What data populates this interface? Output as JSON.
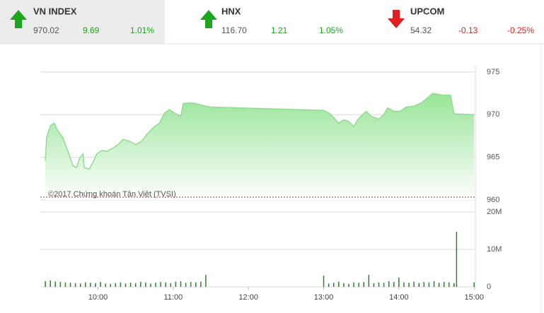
{
  "header": {
    "items": [
      {
        "name": "VN INDEX",
        "price": "970.02",
        "change": "9.69",
        "percent": "1.01%",
        "trend": "up"
      },
      {
        "name": "HNX",
        "price": "116.70",
        "change": "1.21",
        "percent": "1.05%",
        "trend": "up"
      },
      {
        "name": "UPCOM",
        "price": "54.32",
        "change": "-0.13",
        "percent": "-0.25%",
        "trend": "down"
      }
    ]
  },
  "chart_data": [
    {
      "type": "area",
      "annotation": "©2017 Chứng khoán Tân Việt (TVSI)",
      "x": [
        "09:18",
        "09:19",
        "09:22",
        "09:25",
        "09:28",
        "09:32",
        "09:36",
        "09:40",
        "09:43",
        "09:45",
        "09:48",
        "09:49",
        "09:53",
        "09:56",
        "09:59",
        "10:03",
        "10:07",
        "10:12",
        "10:16",
        "10:20",
        "10:25",
        "10:30",
        "10:35",
        "10:39",
        "10:45",
        "10:49",
        "10:53",
        "10:57",
        "11:01",
        "11:06",
        "11:08",
        "11:14",
        "11:21",
        "11:26",
        "11:30",
        "13:00",
        "13:04",
        "13:07",
        "13:12",
        "13:16",
        "13:20",
        "13:24",
        "13:27",
        "13:31",
        "13:34",
        "13:38",
        "13:44",
        "13:48",
        "13:51",
        "13:56",
        "14:01",
        "14:06",
        "14:12",
        "14:18",
        "14:23",
        "14:27",
        "14:35",
        "14:41",
        "14:44",
        "15:00"
      ],
      "values": [
        964.6,
        967.3,
        968.7,
        969.0,
        968.1,
        967.3,
        965.7,
        964.0,
        963.8,
        964.8,
        965.4,
        963.8,
        963.6,
        964.4,
        965.4,
        965.8,
        965.7,
        966.1,
        966.5,
        967.1,
        966.9,
        966.5,
        966.9,
        967.7,
        968.6,
        969.0,
        970.2,
        970.6,
        970.2,
        969.8,
        971.3,
        971.4,
        971.2,
        971.0,
        970.9,
        970.5,
        970.2,
        969.8,
        969.0,
        969.4,
        969.2,
        968.6,
        969.4,
        970.0,
        970.4,
        969.8,
        969.5,
        970.0,
        970.8,
        970.4,
        970.4,
        970.9,
        971.0,
        971.4,
        972.0,
        972.5,
        972.3,
        972.3,
        970.1,
        970.0
      ],
      "color": "#8fdc8f",
      "reference": 960.33,
      "reference_color": "#b03030",
      "xlim": [
        "09:14",
        "15:01"
      ],
      "ylim": [
        960,
        975
      ],
      "yticks": [
        960,
        965,
        970,
        975
      ],
      "grid": true
    },
    {
      "type": "bar",
      "color": "#2e7d32",
      "x": [
        "09:18",
        "09:22",
        "09:26",
        "09:30",
        "09:34",
        "09:38",
        "09:42",
        "09:46",
        "09:50",
        "09:54",
        "09:58",
        "10:02",
        "10:06",
        "10:10",
        "10:14",
        "10:18",
        "10:22",
        "10:26",
        "10:30",
        "10:34",
        "10:38",
        "10:42",
        "10:46",
        "10:50",
        "10:54",
        "10:58",
        "11:02",
        "11:06",
        "11:10",
        "11:14",
        "11:18",
        "11:22",
        "11:26",
        "13:00",
        "13:04",
        "13:08",
        "13:12",
        "13:16",
        "13:20",
        "13:24",
        "13:28",
        "13:32",
        "13:36",
        "13:40",
        "13:44",
        "13:48",
        "13:52",
        "13:56",
        "14:00",
        "14:04",
        "14:08",
        "14:12",
        "14:16",
        "14:20",
        "14:24",
        "14:28",
        "14:32",
        "14:36",
        "14:40",
        "14:44",
        "14:46",
        "15:00"
      ],
      "values": [
        1500000,
        1700000,
        1400000,
        1300000,
        1200000,
        1100000,
        1000000,
        900000,
        1200000,
        1100000,
        1000000,
        1300000,
        900000,
        800000,
        1000000,
        1200000,
        900000,
        1100000,
        1000000,
        1400000,
        1200000,
        900000,
        1100000,
        1300000,
        1200000,
        1000000,
        1400000,
        1500000,
        1100000,
        1300000,
        1200000,
        1400000,
        3200000,
        3000000,
        900000,
        1100000,
        1400000,
        1000000,
        800000,
        1200000,
        1100000,
        1300000,
        3200000,
        1000000,
        1200000,
        1100000,
        1500000,
        1300000,
        2500000,
        1200000,
        1100000,
        1400000,
        1000000,
        1300000,
        1200000,
        1500000,
        1100000,
        1300000,
        1200000,
        1000000,
        14700000,
        1200000
      ],
      "xlim": [
        "09:14",
        "15:01"
      ],
      "xticks": [
        "10:00",
        "11:00",
        "12:00",
        "13:00",
        "14:00",
        "15:00"
      ],
      "ylim": [
        0,
        20000000
      ],
      "yticks": [
        0,
        {
          "value": 10000000,
          "label": "10M"
        },
        {
          "value": 20000000,
          "label": "20M"
        }
      ],
      "grid": true
    }
  ]
}
